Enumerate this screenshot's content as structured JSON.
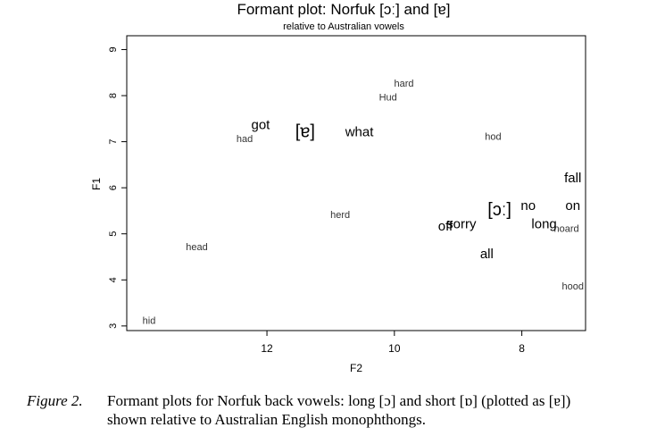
{
  "chart_data": {
    "type": "scatter",
    "title": "Formant plot: Norfuk [ɔː] and [ɐ]",
    "subtitle": "relative to Australian vowels",
    "xlabel": "F2",
    "ylabel": "F1",
    "xlim": [
      14.2,
      7.0
    ],
    "ylim": [
      9.3,
      2.9
    ],
    "x_ticks": [
      "12",
      "10",
      "8"
    ],
    "y_ticks": [
      "3",
      "4",
      "5",
      "6",
      "7",
      "8",
      "9"
    ],
    "grid": false,
    "legend": "none",
    "reference_vowels": [
      {
        "label": "hid",
        "x": 13.85,
        "y": 3.1
      },
      {
        "label": "hood",
        "x": 7.2,
        "y": 3.85
      },
      {
        "label": "head",
        "x": 13.1,
        "y": 4.7
      },
      {
        "label": "herd",
        "x": 10.85,
        "y": 5.4
      },
      {
        "label": "hoard",
        "x": 7.3,
        "y": 5.1
      },
      {
        "label": "had",
        "x": 12.35,
        "y": 7.05
      },
      {
        "label": "hod",
        "x": 8.45,
        "y": 7.1
      },
      {
        "label": "Hud",
        "x": 10.1,
        "y": 7.95
      },
      {
        "label": "hard",
        "x": 9.85,
        "y": 8.25
      }
    ],
    "norfuk_words": [
      {
        "label": "all",
        "x": 8.55,
        "y": 4.55
      },
      {
        "label": "off",
        "x": 9.2,
        "y": 5.15
      },
      {
        "label": "sorry",
        "x": 8.95,
        "y": 5.2
      },
      {
        "label": "long",
        "x": 7.65,
        "y": 5.2
      },
      {
        "label": "no",
        "x": 7.9,
        "y": 5.6
      },
      {
        "label": "on",
        "x": 7.2,
        "y": 5.6
      },
      {
        "label": "fall",
        "x": 7.2,
        "y": 6.2
      },
      {
        "label": "got",
        "x": 12.1,
        "y": 7.35
      },
      {
        "label": "what",
        "x": 10.55,
        "y": 7.2
      }
    ],
    "means": [
      {
        "label": "[ɔː]",
        "x": 8.35,
        "y": 5.5
      },
      {
        "label": "[ɐ]",
        "x": 11.4,
        "y": 7.2
      }
    ]
  },
  "caption": {
    "label": "Figure 2.",
    "line1": "Formant plots for Norfuk back vowels: long [ɔ] and short [ɒ] (plotted as [ɐ])",
    "line2": "shown relative to Australian English monophthongs."
  }
}
